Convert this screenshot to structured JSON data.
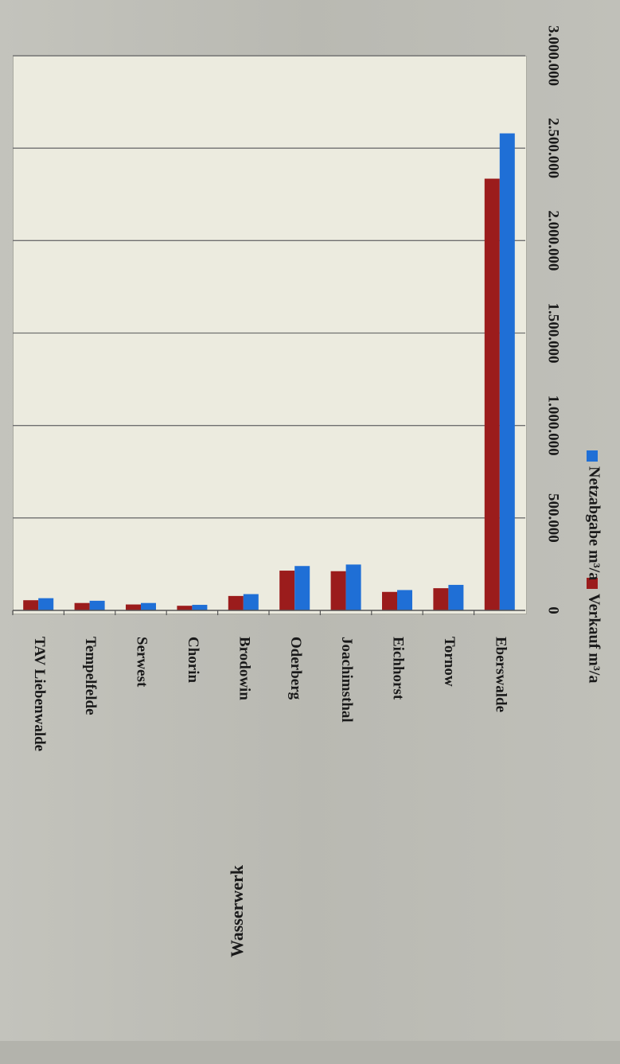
{
  "chart_data": {
    "type": "bar",
    "orientation": "vertical-rotated",
    "title": "",
    "xlabel": "Wasserwerk",
    "ylabel": "",
    "categories": [
      "TAV Liebenwalde",
      "Tempelfelde",
      "Serwest",
      "Chorin",
      "Brodowin",
      "Oderberg",
      "Joachimsthal",
      "Eichhorst",
      "Tornow",
      "Eberswalde"
    ],
    "series": [
      {
        "name": "Verkauf m³/a",
        "color": "#9b1c1c",
        "values": [
          55000,
          40000,
          32000,
          25000,
          78000,
          215000,
          212000,
          100000,
          120000,
          2335000
        ]
      },
      {
        "name": "Netzabgabe m³/a",
        "color": "#1f6fd6",
        "values": [
          66000,
          52000,
          40000,
          30000,
          88000,
          240000,
          248000,
          110000,
          138000,
          2580000
        ]
      }
    ],
    "ylim": [
      0,
      3000000
    ],
    "yticks": [
      0,
      500000,
      1000000,
      1500000,
      2000000,
      2500000,
      3000000
    ],
    "ytick_labels": [
      "0",
      "500.000",
      "1.000.000",
      "1.500.000",
      "2.000.000",
      "2.500.000",
      "3.000.000"
    ],
    "grid": true,
    "legend_position": "right"
  }
}
